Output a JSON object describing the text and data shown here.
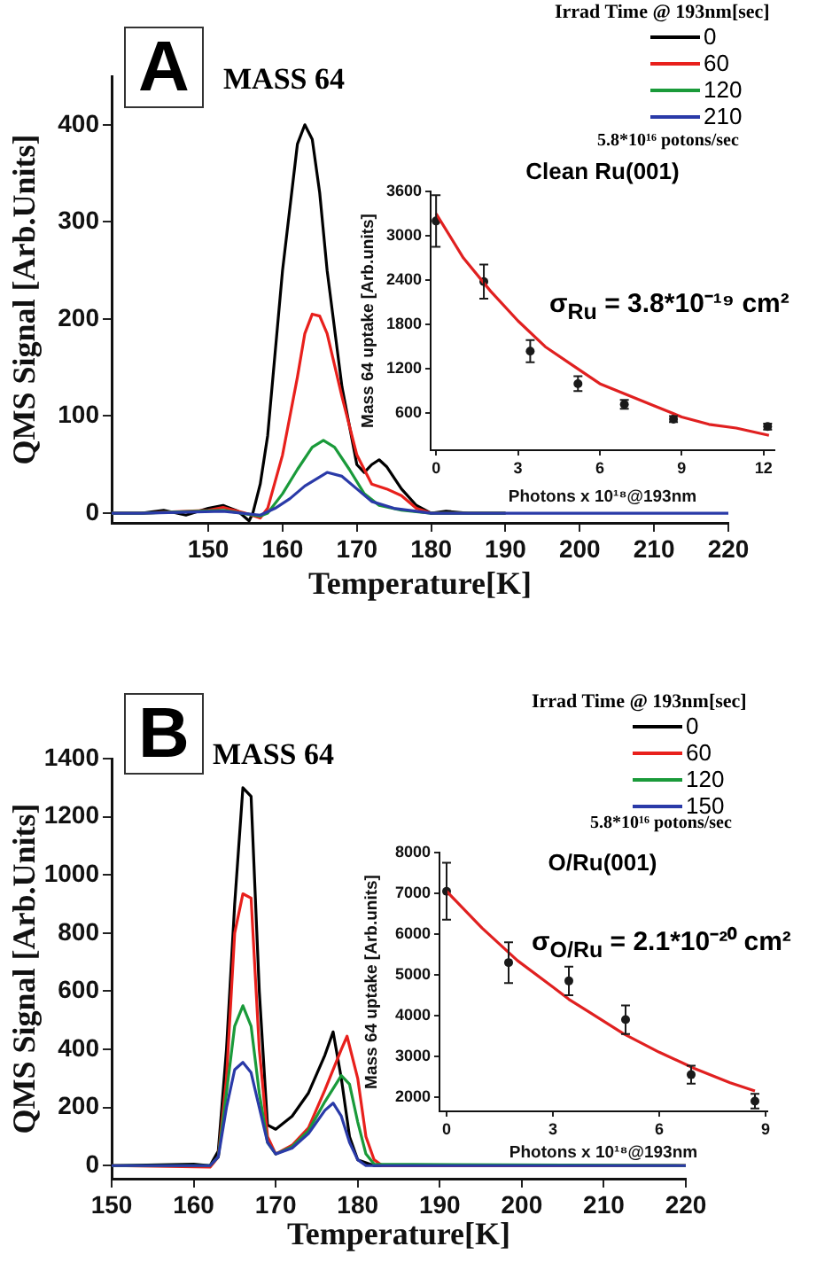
{
  "chart_data": [
    {
      "type": "line",
      "xlabel": "Temperature[K]",
      "ylabel": "QMS Signal [Arb.Units]",
      "legend_title": "Irrad Time @ 193nm[sec]",
      "legend": "top right",
      "grid": false,
      "annotations": [
        "A",
        "MASS 64",
        "5.8*10¹⁶ potons/sec"
      ],
      "xlim": [
        137,
        220
      ],
      "ylim": [
        -10,
        450
      ],
      "xticks": [
        150,
        160,
        170,
        180,
        190,
        200,
        210,
        220
      ],
      "yticks": [
        0,
        100,
        200,
        300,
        400
      ],
      "series": [
        {
          "name": "0",
          "color": "#000000",
          "x": [
            137,
            141,
            144,
            147,
            150,
            152,
            154,
            155.5,
            156,
            157,
            158,
            160,
            162,
            163,
            164,
            165,
            166,
            168,
            170,
            171,
            172,
            173,
            174,
            176,
            178,
            180,
            182,
            185,
            190
          ],
          "values": [
            0,
            0,
            3,
            -2,
            5,
            8,
            2,
            -8,
            0,
            30,
            80,
            250,
            380,
            400,
            385,
            330,
            250,
            130,
            50,
            42,
            50,
            55,
            48,
            25,
            8,
            0,
            2,
            0,
            0
          ]
        },
        {
          "name": "60",
          "color": "#e8201c",
          "x": [
            137,
            141,
            150,
            152,
            155,
            157,
            158,
            160,
            162,
            163,
            164,
            165,
            166,
            168,
            170,
            172,
            174,
            176,
            178,
            180,
            190
          ],
          "values": [
            0,
            0,
            3,
            6,
            0,
            -5,
            5,
            60,
            140,
            185,
            205,
            203,
            185,
            120,
            60,
            30,
            25,
            18,
            5,
            0,
            0
          ]
        },
        {
          "name": "120",
          "color": "#1a9a3a",
          "x": [
            137,
            141,
            152,
            157,
            158,
            160,
            162,
            164,
            165.5,
            167,
            169,
            171,
            173,
            176,
            180,
            190
          ],
          "values": [
            0,
            0,
            3,
            -3,
            0,
            20,
            45,
            68,
            75,
            68,
            45,
            20,
            8,
            3,
            0,
            0
          ]
        },
        {
          "name": "210",
          "color": "#2a3aa8",
          "x": [
            137,
            141,
            152,
            157,
            159,
            161,
            163,
            166,
            168,
            170,
            172,
            175,
            178,
            180,
            220
          ],
          "values": [
            0,
            0,
            2,
            -2,
            5,
            15,
            28,
            42,
            38,
            25,
            12,
            5,
            2,
            0,
            0
          ]
        }
      ]
    },
    {
      "type": "scatter",
      "title": "Clean Ru(001)",
      "xlabel": "Photons x 10¹⁸@193nm",
      "ylabel": "Mass 64 uptake [Arb.units]",
      "legend": false,
      "grid": false,
      "annotations": [
        "σ$_{Ru}$ = 3.8*10⁻¹⁹ cm²"
      ],
      "xlim": [
        -0.2,
        12.4
      ],
      "ylim": [
        100,
        3600
      ],
      "xticks": [
        0,
        3,
        6,
        9,
        12
      ],
      "yticks": [
        600,
        1200,
        1800,
        2400,
        3000,
        3600
      ],
      "series": [
        {
          "color": "#1a1a1a",
          "marker": "circle",
          "x": [
            0,
            1.75,
            3.45,
            5.2,
            6.9,
            8.7,
            12.15
          ],
          "values": [
            3200,
            2380,
            1440,
            1000,
            720,
            520,
            420
          ],
          "errors": [
            350,
            230,
            150,
            100,
            60,
            40,
            40
          ]
        },
        {
          "type": "line",
          "color": "#e02020",
          "x": [
            0,
            1,
            2,
            3,
            4,
            5,
            6,
            7,
            8,
            9,
            10,
            11,
            12.2
          ],
          "values": [
            3300,
            2700,
            2250,
            1850,
            1500,
            1250,
            1000,
            850,
            700,
            550,
            450,
            400,
            300
          ]
        }
      ]
    },
    {
      "type": "line",
      "xlabel": "Temperature[K]",
      "ylabel": "QMS Signal [Arb.Units]",
      "legend_title": "Irrad Time @ 193nm[sec]",
      "legend": "top right",
      "grid": false,
      "annotations": [
        "B",
        "MASS 64",
        "5.8*10¹⁶ potons/sec"
      ],
      "xlim": [
        150,
        220
      ],
      "ylim": [
        -45,
        1400
      ],
      "xticks": [
        150,
        160,
        170,
        180,
        190,
        200,
        210,
        220
      ],
      "yticks": [
        0,
        200,
        400,
        600,
        800,
        1000,
        1200,
        1400
      ],
      "series": [
        {
          "name": "0",
          "color": "#000000",
          "x": [
            150,
            160,
            162,
            163,
            164,
            165,
            166,
            167,
            168,
            169,
            170,
            172,
            174,
            176,
            177,
            178,
            179,
            180,
            182,
            220
          ],
          "values": [
            0,
            5,
            0,
            50,
            400,
            900,
            1300,
            1270,
            600,
            140,
            125,
            170,
            250,
            380,
            460,
            300,
            100,
            20,
            0,
            0
          ]
        },
        {
          "name": "60",
          "color": "#e8201c",
          "x": [
            150,
            162,
            163,
            164,
            165,
            166,
            167,
            168,
            169,
            170,
            172,
            174,
            176,
            178,
            178.7,
            180,
            181,
            182,
            183,
            220
          ],
          "values": [
            0,
            -5,
            30,
            300,
            800,
            935,
            920,
            400,
            100,
            40,
            70,
            130,
            260,
            400,
            445,
            300,
            100,
            20,
            0,
            0
          ]
        },
        {
          "name": "120",
          "color": "#1a9a3a",
          "x": [
            150,
            162,
            163,
            164,
            165,
            166,
            167,
            168,
            169,
            170,
            172,
            174,
            176,
            178,
            179,
            180,
            181,
            182,
            220
          ],
          "values": [
            0,
            0,
            30,
            250,
            480,
            550,
            480,
            250,
            80,
            40,
            65,
            120,
            220,
            310,
            280,
            150,
            40,
            5,
            0
          ]
        },
        {
          "name": "150",
          "color": "#2a3aa8",
          "x": [
            150,
            162,
            163,
            164,
            165,
            166,
            167,
            168,
            169,
            170,
            172,
            174,
            176,
            177,
            178,
            179,
            180,
            181,
            220
          ],
          "values": [
            0,
            0,
            30,
            200,
            330,
            355,
            320,
            200,
            80,
            40,
            60,
            110,
            190,
            215,
            170,
            80,
            20,
            0,
            0
          ]
        }
      ]
    },
    {
      "type": "scatter",
      "title": "O/Ru(001)",
      "xlabel": "Photons x 10¹⁸@193nm",
      "ylabel": "Mass 64 uptake [Arb.units]",
      "legend": false,
      "grid": false,
      "annotations": [
        "σ$_{O/Ru}$ = 2.1*10⁻²⁰ cm²"
      ],
      "xlim": [
        -0.2,
        9.05
      ],
      "ylim": [
        1650,
        8000
      ],
      "xticks": [
        0,
        3,
        6,
        9
      ],
      "yticks": [
        2000,
        3000,
        4000,
        5000,
        6000,
        7000,
        8000
      ],
      "series": [
        {
          "color": "#1a1a1a",
          "marker": "circle",
          "x": [
            0,
            1.75,
            3.45,
            5.05,
            6.9,
            8.7
          ],
          "values": [
            7050,
            5300,
            4850,
            3900,
            2550,
            1900
          ],
          "errors": [
            700,
            500,
            350,
            350,
            220,
            180
          ]
        },
        {
          "type": "line",
          "color": "#e02020",
          "x": [
            0,
            1,
            2,
            3,
            3.45,
            4,
            5,
            6,
            7,
            8,
            8.7
          ],
          "values": [
            7050,
            6150,
            5350,
            4700,
            4400,
            4100,
            3550,
            3100,
            2700,
            2350,
            2150
          ]
        }
      ]
    }
  ]
}
